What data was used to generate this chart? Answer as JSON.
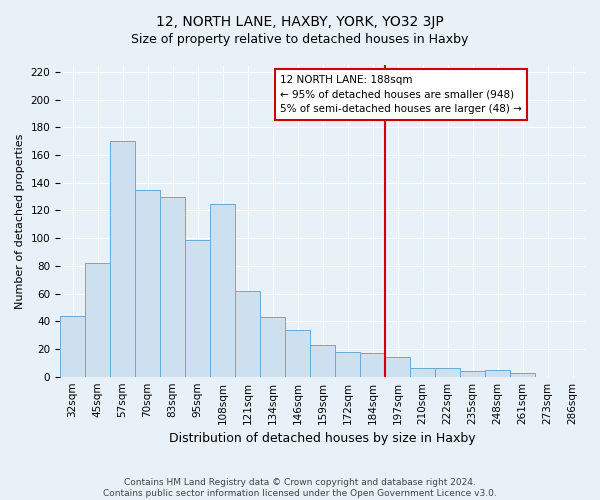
{
  "title": "12, NORTH LANE, HAXBY, YORK, YO32 3JP",
  "subtitle": "Size of property relative to detached houses in Haxby",
  "xlabel": "Distribution of detached houses by size in Haxby",
  "ylabel": "Number of detached properties",
  "bar_labels": [
    "32sqm",
    "45sqm",
    "57sqm",
    "70sqm",
    "83sqm",
    "95sqm",
    "108sqm",
    "121sqm",
    "134sqm",
    "146sqm",
    "159sqm",
    "172sqm",
    "184sqm",
    "197sqm",
    "210sqm",
    "222sqm",
    "235sqm",
    "248sqm",
    "261sqm",
    "273sqm",
    "286sqm"
  ],
  "bar_values": [
    44,
    82,
    170,
    135,
    130,
    99,
    125,
    62,
    43,
    34,
    23,
    18,
    17,
    14,
    6,
    6,
    4,
    5,
    3,
    0,
    0
  ],
  "bar_color": "#cce0f0",
  "bar_edge_color": "#6aaad4",
  "vline_index": 12,
  "vline_color": "#cc0000",
  "annotation_title": "12 NORTH LANE: 188sqm",
  "annotation_line1": "← 95% of detached houses are smaller (948)",
  "annotation_line2": "5% of semi-detached houses are larger (48) →",
  "annotation_box_color": "#ffffff",
  "annotation_box_edge": "#cc0000",
  "ylim": [
    0,
    225
  ],
  "yticks": [
    0,
    20,
    40,
    60,
    80,
    100,
    120,
    140,
    160,
    180,
    200,
    220
  ],
  "footer_line1": "Contains HM Land Registry data © Crown copyright and database right 2024.",
  "footer_line2": "Contains public sector information licensed under the Open Government Licence v3.0.",
  "background_color": "#e8f0f8",
  "plot_bg_color": "#e8f0f8",
  "grid_color": "#ffffff",
  "title_fontsize": 10,
  "subtitle_fontsize": 9,
  "ylabel_fontsize": 8,
  "xlabel_fontsize": 9,
  "tick_fontsize": 7.5,
  "footer_fontsize": 6.5
}
